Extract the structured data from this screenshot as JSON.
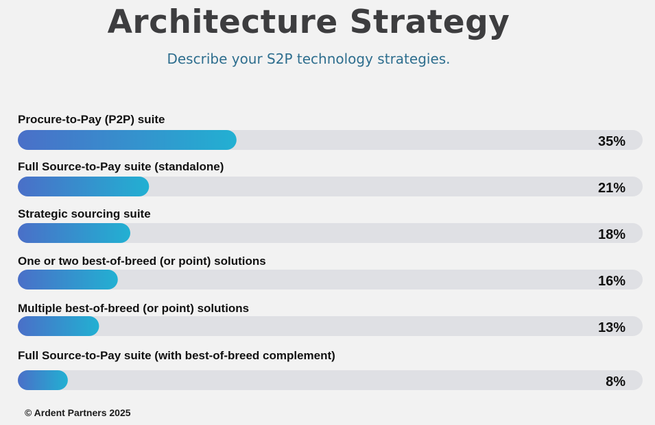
{
  "title": "Architecture Strategy",
  "subtitle": "Describe your S2P technology strategies.",
  "footer": "© Ardent Partners 2025",
  "colors": {
    "background": "#f2f2f2",
    "track": "#dfe0e4",
    "bar_gradient_start": "#4a6fc8",
    "bar_gradient_end": "#22b0d2",
    "label": "#111111"
  },
  "chart_data": {
    "type": "bar",
    "orientation": "horizontal",
    "categories": [
      "Procure-to-Pay (P2P) suite",
      "Full Source-to-Pay suite (standalone)",
      "Strategic sourcing suite",
      "One or two best-of-breed (or point) solutions",
      "Multiple best-of-breed (or point) solutions",
      "Full Source-to-Pay suite (with best-of-breed complement)"
    ],
    "values": [
      35,
      21,
      18,
      16,
      13,
      8
    ],
    "value_labels": [
      "35%",
      "21%",
      "18%",
      "16%",
      "13%",
      "8%"
    ],
    "xlim": [
      0,
      100
    ],
    "grid": false,
    "legend": "none"
  }
}
